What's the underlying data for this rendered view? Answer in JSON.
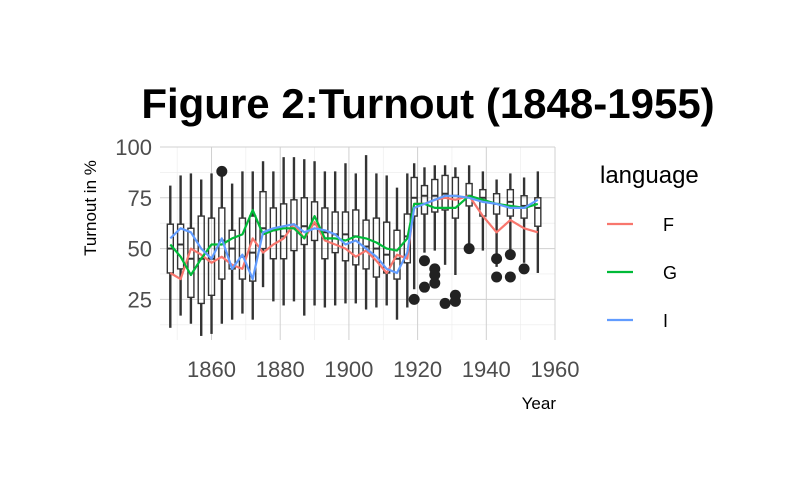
{
  "chart_data": {
    "type": "box+line",
    "title": "Figure 2:Turnout (1848-1955)",
    "xlabel": "Year",
    "ylabel": "Turnout in %",
    "xlim": [
      1845,
      1960
    ],
    "ylim": [
      5,
      100
    ],
    "x_ticks": [
      1860,
      1880,
      1900,
      1920,
      1940,
      1960
    ],
    "y_ticks": [
      25,
      50,
      75,
      100
    ],
    "grid": true,
    "legend": {
      "title": "language",
      "position": "right"
    },
    "colors": {
      "F": "#F8766D",
      "G": "#00BA38",
      "I": "#619CFF",
      "box": "#333333"
    },
    "boxes": [
      {
        "x": 1848,
        "lo": 11,
        "q1": 38,
        "med": 50,
        "q3": 62,
        "hi": 81
      },
      {
        "x": 1851,
        "lo": 17,
        "q1": 40,
        "med": 52,
        "q3": 62,
        "hi": 86
      },
      {
        "x": 1854,
        "lo": 13,
        "q1": 26,
        "med": 45,
        "q3": 60,
        "hi": 87
      },
      {
        "x": 1857,
        "lo": 7,
        "q1": 23,
        "med": 45,
        "q3": 66,
        "hi": 84
      },
      {
        "x": 1860,
        "lo": 8,
        "q1": 27,
        "med": 45,
        "q3": 65,
        "hi": 87
      },
      {
        "x": 1863,
        "lo": 13,
        "q1": 35,
        "med": 54,
        "q3": 70,
        "hi": 87
      },
      {
        "x": 1866,
        "lo": 15,
        "q1": 40,
        "med": 50,
        "q3": 59,
        "hi": 82
      },
      {
        "x": 1869,
        "lo": 18,
        "q1": 35,
        "med": 46,
        "q3": 65,
        "hi": 88
      },
      {
        "x": 1872,
        "lo": 15,
        "q1": 34,
        "med": 48,
        "q3": 66,
        "hi": 88
      },
      {
        "x": 1875,
        "lo": 31,
        "q1": 50,
        "med": 60,
        "q3": 78,
        "hi": 93
      },
      {
        "x": 1878,
        "lo": 24,
        "q1": 45,
        "med": 59,
        "q3": 70,
        "hi": 88
      },
      {
        "x": 1881,
        "lo": 22,
        "q1": 45,
        "med": 56,
        "q3": 72,
        "hi": 95
      },
      {
        "x": 1884,
        "lo": 24,
        "q1": 49,
        "med": 60,
        "q3": 74,
        "hi": 95
      },
      {
        "x": 1887,
        "lo": 17,
        "q1": 52,
        "med": 61,
        "q3": 75,
        "hi": 94
      },
      {
        "x": 1890,
        "lo": 22,
        "q1": 54,
        "med": 62,
        "q3": 73,
        "hi": 93
      },
      {
        "x": 1893,
        "lo": 21,
        "q1": 45,
        "med": 58,
        "q3": 70,
        "hi": 88
      },
      {
        "x": 1896,
        "lo": 22,
        "q1": 48,
        "med": 57,
        "q3": 68,
        "hi": 88
      },
      {
        "x": 1899,
        "lo": 23,
        "q1": 44,
        "med": 57,
        "q3": 68,
        "hi": 92
      },
      {
        "x": 1902,
        "lo": 23,
        "q1": 42,
        "med": 56,
        "q3": 69,
        "hi": 87
      },
      {
        "x": 1905,
        "lo": 20,
        "q1": 40,
        "med": 51,
        "q3": 64,
        "hi": 96
      },
      {
        "x": 1908,
        "lo": 21,
        "q1": 36,
        "med": 50,
        "q3": 65,
        "hi": 87
      },
      {
        "x": 1911,
        "lo": 22,
        "q1": 38,
        "med": 47,
        "q3": 63,
        "hi": 86
      },
      {
        "x": 1914,
        "lo": 15,
        "q1": 35,
        "med": 45,
        "q3": 59,
        "hi": 80
      },
      {
        "x": 1917,
        "lo": 21,
        "q1": 43,
        "med": 56,
        "q3": 67,
        "hi": 87
      },
      {
        "x": 1919,
        "lo": 30,
        "q1": 66,
        "med": 75,
        "q3": 85,
        "hi": 92
      },
      {
        "x": 1922,
        "lo": 48,
        "q1": 67,
        "med": 76,
        "q3": 81,
        "hi": 90
      },
      {
        "x": 1925,
        "lo": 49,
        "q1": 68,
        "med": 76,
        "q3": 84,
        "hi": 91
      },
      {
        "x": 1928,
        "lo": 42,
        "q1": 69,
        "med": 77,
        "q3": 86,
        "hi": 91
      },
      {
        "x": 1931,
        "lo": 37,
        "q1": 65,
        "med": 76,
        "q3": 85,
        "hi": 90
      },
      {
        "x": 1935,
        "lo": 52,
        "q1": 71,
        "med": 76,
        "q3": 82,
        "hi": 91
      },
      {
        "x": 1939,
        "lo": 49,
        "q1": 66,
        "med": 75,
        "q3": 79,
        "hi": 88
      },
      {
        "x": 1943,
        "lo": 41,
        "q1": 67,
        "med": 72,
        "q3": 77,
        "hi": 84
      },
      {
        "x": 1947,
        "lo": 49,
        "q1": 66,
        "med": 73,
        "q3": 79,
        "hi": 87
      },
      {
        "x": 1951,
        "lo": 43,
        "q1": 65,
        "med": 71,
        "q3": 76,
        "hi": 85
      },
      {
        "x": 1955,
        "lo": 38,
        "q1": 61,
        "med": 70,
        "q3": 75,
        "hi": 88
      }
    ],
    "outliers": [
      {
        "x": 1863,
        "y": 88
      },
      {
        "x": 1919,
        "y": 25
      },
      {
        "x": 1922,
        "y": 44
      },
      {
        "x": 1922,
        "y": 31
      },
      {
        "x": 1925,
        "y": 40
      },
      {
        "x": 1925,
        "y": 37
      },
      {
        "x": 1925,
        "y": 33
      },
      {
        "x": 1928,
        "y": 23
      },
      {
        "x": 1931,
        "y": 27
      },
      {
        "x": 1931,
        "y": 24
      },
      {
        "x": 1935,
        "y": 50
      },
      {
        "x": 1943,
        "y": 45
      },
      {
        "x": 1943,
        "y": 36
      },
      {
        "x": 1947,
        "y": 47
      },
      {
        "x": 1947,
        "y": 36
      },
      {
        "x": 1951,
        "y": 40
      }
    ],
    "x": [
      1848,
      1851,
      1854,
      1857,
      1860,
      1863,
      1866,
      1869,
      1872,
      1875,
      1878,
      1881,
      1884,
      1887,
      1890,
      1893,
      1896,
      1899,
      1902,
      1905,
      1908,
      1911,
      1914,
      1917,
      1919,
      1922,
      1925,
      1928,
      1931,
      1935,
      1939,
      1943,
      1947,
      1951,
      1955
    ],
    "series": [
      {
        "name": "F",
        "values": [
          38,
          35,
          50,
          47,
          43,
          46,
          42,
          40,
          55,
          48,
          52,
          55,
          62,
          55,
          63,
          54,
          52,
          50,
          46,
          49,
          44,
          38,
          47,
          45,
          72,
          72,
          74,
          75,
          74,
          76,
          66,
          58,
          64,
          60,
          58
        ]
      },
      {
        "name": "G",
        "values": [
          52,
          46,
          37,
          45,
          52,
          52,
          55,
          57,
          69,
          57,
          59,
          60,
          60,
          55,
          66,
          55,
          55,
          54,
          56,
          55,
          53,
          50,
          49,
          55,
          72,
          72,
          70,
          70,
          70,
          76,
          74,
          72,
          71,
          70,
          72
        ]
      },
      {
        "name": "I",
        "values": [
          55,
          60,
          58,
          50,
          45,
          55,
          40,
          47,
          35,
          58,
          60,
          61,
          62,
          58,
          60,
          59,
          57,
          52,
          54,
          50,
          46,
          40,
          38,
          48,
          70,
          72,
          74,
          76,
          76,
          75,
          73,
          72,
          70,
          70,
          74
        ]
      }
    ]
  }
}
